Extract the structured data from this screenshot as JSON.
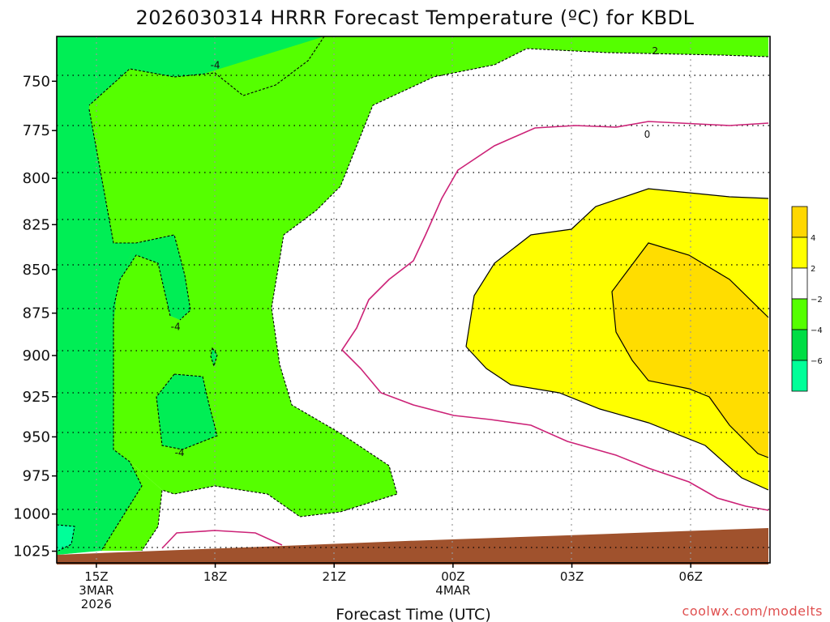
{
  "chart_data": {
    "type": "contour",
    "title": "2026030314 HRRR Forecast Temperature (ºC) for KBDL",
    "xlabel": "Forecast Time (UTC)",
    "credit": "coolwx.com/modelts",
    "y_ticks": [
      "750",
      "775",
      "800",
      "825",
      "850",
      "875",
      "900",
      "925",
      "950",
      "975",
      "1000",
      "1025"
    ],
    "x_ticks": [
      {
        "hour": 15,
        "lines": [
          "15Z",
          "3MAR",
          "2026"
        ]
      },
      {
        "hour": 18,
        "lines": [
          "18Z"
        ]
      },
      {
        "hour": 21,
        "lines": [
          "21Z"
        ]
      },
      {
        "hour": 24,
        "lines": [
          "00Z",
          "4MAR"
        ]
      },
      {
        "hour": 27,
        "lines": [
          "03Z"
        ]
      },
      {
        "hour": 30,
        "lines": [
          "06Z"
        ]
      }
    ],
    "x_range_hours": [
      14,
      32
    ],
    "y_range_hpa": [
      728,
      1033
    ],
    "contour_labels": [
      {
        "text": "-4",
        "hour": 18.0,
        "hpa": 742
      },
      {
        "text": "2",
        "hour": 29.1,
        "hpa": 735
      },
      {
        "text": "0",
        "hour": 28.9,
        "hpa": 777
      },
      {
        "text": "-4",
        "hour": 17.0,
        "hpa": 883
      },
      {
        "text": "-4",
        "hour": 17.1,
        "hpa": 960
      }
    ],
    "colorbar": {
      "colors": [
        "#ffd700",
        "#ffff00",
        "#ffffff",
        "#55ff00",
        "#00dd44",
        "#00ff99"
      ],
      "tick_labels": [
        "4",
        "2",
        "−2",
        "−4",
        "−6"
      ]
    },
    "colors": {
      "minus6_to_minus4": "#00ee55",
      "minus4_to_minus2": "#55ff00",
      "minus2_to_2": "#ffffff",
      "2_to_4": "#ffff00",
      "above_4": "#ffdd00",
      "below_minus6": "#00ff99",
      "ground": "#a0522d",
      "zero_line": "#cc2277"
    }
  }
}
